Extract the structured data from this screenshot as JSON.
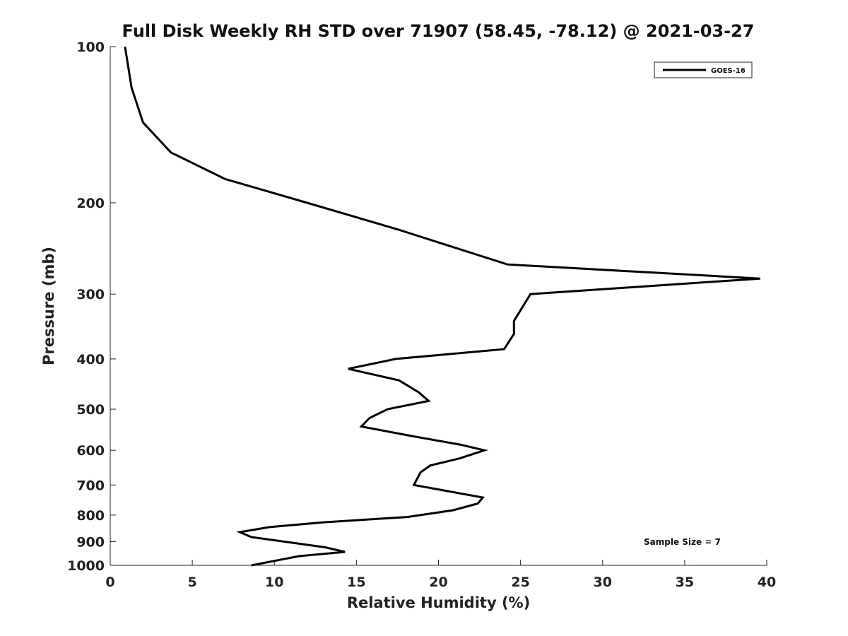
{
  "chart_data": {
    "type": "line",
    "title": "Full Disk Weekly RH STD over 71907 (58.45, -78.12) @ 2021-03-27",
    "xlabel": "Relative Humidity (%)",
    "ylabel": "Pressure (mb)",
    "xlim": [
      0,
      40
    ],
    "ylim": [
      100,
      1000
    ],
    "y_scale": "log",
    "y_reversed": true,
    "grid": false,
    "legend_position": "top-right",
    "x_ticks": [
      "0",
      "5",
      "10",
      "15",
      "20",
      "25",
      "30",
      "35",
      "40"
    ],
    "y_ticks": [
      "100",
      "200",
      "300",
      "400",
      "500",
      "600",
      "700",
      "800",
      "900",
      "1000"
    ],
    "annotation": "Sample Size = 7",
    "series": [
      {
        "name": "GOES-16",
        "color": "#000000",
        "points": [
          {
            "x": 0.9,
            "y": 100
          },
          {
            "x": 1.3,
            "y": 120
          },
          {
            "x": 2.0,
            "y": 140
          },
          {
            "x": 3.7,
            "y": 160
          },
          {
            "x": 7.0,
            "y": 180
          },
          {
            "x": 12.0,
            "y": 200
          },
          {
            "x": 17.5,
            "y": 225
          },
          {
            "x": 24.2,
            "y": 263
          },
          {
            "x": 39.6,
            "y": 280
          },
          {
            "x": 25.6,
            "y": 300
          },
          {
            "x": 24.6,
            "y": 338
          },
          {
            "x": 24.6,
            "y": 358
          },
          {
            "x": 24.0,
            "y": 383
          },
          {
            "x": 17.4,
            "y": 400
          },
          {
            "x": 14.5,
            "y": 418
          },
          {
            "x": 17.6,
            "y": 440
          },
          {
            "x": 18.8,
            "y": 464
          },
          {
            "x": 19.4,
            "y": 482
          },
          {
            "x": 16.9,
            "y": 500
          },
          {
            "x": 15.8,
            "y": 520
          },
          {
            "x": 15.3,
            "y": 540
          },
          {
            "x": 18.6,
            "y": 565
          },
          {
            "x": 21.3,
            "y": 585
          },
          {
            "x": 22.8,
            "y": 600
          },
          {
            "x": 21.3,
            "y": 622
          },
          {
            "x": 19.5,
            "y": 642
          },
          {
            "x": 18.9,
            "y": 662
          },
          {
            "x": 18.5,
            "y": 700
          },
          {
            "x": 22.7,
            "y": 740
          },
          {
            "x": 22.4,
            "y": 760
          },
          {
            "x": 20.9,
            "y": 783
          },
          {
            "x": 18.1,
            "y": 807
          },
          {
            "x": 13.0,
            "y": 826
          },
          {
            "x": 9.7,
            "y": 844
          },
          {
            "x": 7.9,
            "y": 863
          },
          {
            "x": 8.6,
            "y": 882
          },
          {
            "x": 13.1,
            "y": 923
          },
          {
            "x": 14.3,
            "y": 942
          },
          {
            "x": 11.5,
            "y": 960
          },
          {
            "x": 8.6,
            "y": 1000
          }
        ]
      }
    ]
  }
}
